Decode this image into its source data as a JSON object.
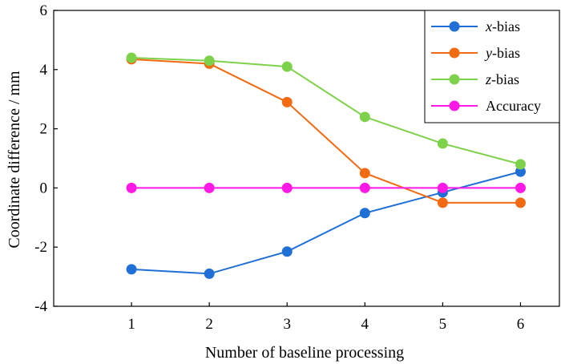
{
  "chart_data": {
    "type": "line",
    "title": "",
    "xlabel": "Number of baseline processing",
    "ylabel": "Coordinate difference / mm",
    "x": [
      1,
      2,
      3,
      4,
      5,
      6
    ],
    "xlim": [
      0.0,
      6.5
    ],
    "ylim": [
      -4,
      6
    ],
    "yticks": [
      -4,
      -2,
      0,
      2,
      4,
      6
    ],
    "xticks": [
      1,
      2,
      3,
      4,
      5,
      6
    ],
    "grid": false,
    "legend_position": "top-right",
    "series": [
      {
        "name": "x-bias",
        "var": "x",
        "suffix": "-bias",
        "color": "#1f6fd6",
        "values": [
          -2.75,
          -2.9,
          -2.15,
          -0.85,
          -0.15,
          0.55
        ]
      },
      {
        "name": "y-bias",
        "var": "y",
        "suffix": "-bias",
        "color": "#f26b13",
        "values": [
          4.35,
          4.2,
          2.9,
          0.5,
          -0.5,
          -0.5
        ]
      },
      {
        "name": "z-bias",
        "var": "z",
        "suffix": "-bias",
        "color": "#7ed24b",
        "values": [
          4.4,
          4.3,
          4.1,
          2.4,
          1.5,
          0.8
        ]
      },
      {
        "name": "Accuracy",
        "var": "",
        "suffix": "Accuracy",
        "color": "#ff19e6",
        "values": [
          0,
          0,
          0,
          0,
          0,
          0
        ]
      }
    ]
  }
}
